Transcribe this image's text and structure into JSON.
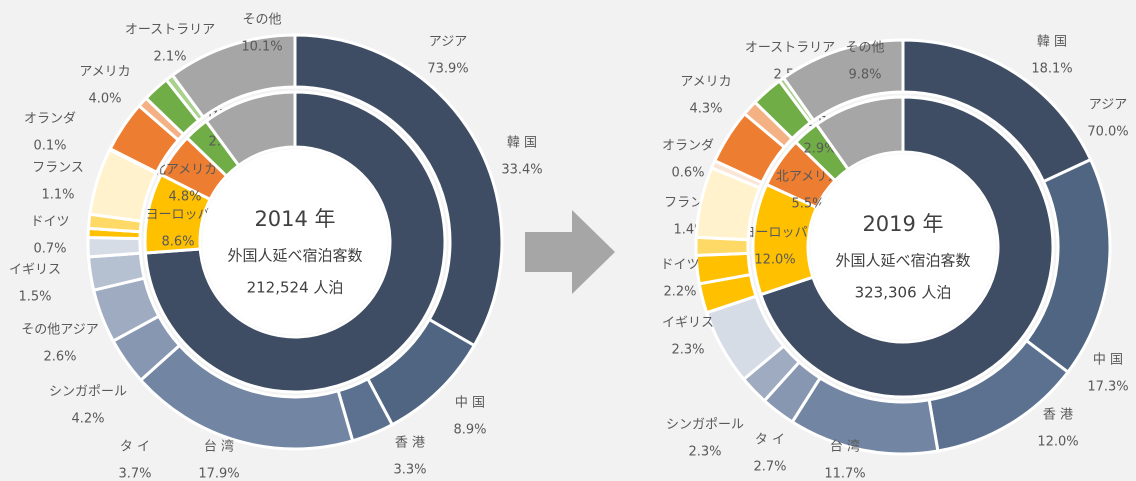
{
  "chart_data": [
    {
      "type": "donut",
      "center_text": [
        "2014 年",
        "外国人延べ宿泊客数",
        "212,524 人泊"
      ],
      "inner": {
        "categories": [
          "アジア",
          "ヨーロッパ",
          "北アメリカ",
          "オセアニア",
          null
        ],
        "values": [
          73.9,
          8.6,
          4.8,
          2.7,
          10.1
        ],
        "value_labels": [
          "73.9%",
          "8.6%",
          "4.8%",
          "2.7%",
          null
        ],
        "colors": [
          "#3e4d63",
          "#ffc000",
          "#ed7d31",
          "#70ad47",
          "#a6a6a6"
        ]
      },
      "outer": {
        "categories": [
          "韓 国",
          "中 国",
          "香 港",
          "台 湾",
          "タ イ",
          "シンガポール",
          "その他アジア",
          "イギリス",
          "ドイツ",
          "フランス",
          null,
          "オランダ",
          "アメリカ",
          null,
          "オーストラリア",
          null,
          "その他"
        ],
        "values": [
          33.4,
          8.9,
          3.3,
          17.9,
          3.7,
          4.2,
          2.6,
          1.5,
          0.7,
          1.1,
          5.2,
          0.1,
          4.0,
          0.8,
          2.1,
          0.6,
          10.1
        ],
        "value_labels": [
          "33.4%",
          "8.9%",
          "3.3%",
          "17.9%",
          "3.7%",
          "4.2%",
          "2.6%",
          "1.5%",
          "0.7%",
          "1.1%",
          null,
          "0.1%",
          "4.0%",
          null,
          "2.1%",
          null,
          "10.1%"
        ],
        "colors": [
          "#3e4d63",
          "#4f6582",
          "#5c7190",
          "#7285a3",
          "#8797b2",
          "#9eabc1",
          "#b5c0d1",
          "#d6dce5",
          "#ffc000",
          "#ffd966",
          "#fff2cc",
          "#fbe5d6",
          "#ed7d31",
          "#f4b183",
          "#70ad47",
          "#a9d18e",
          "#a6a6a6"
        ]
      }
    },
    {
      "type": "donut",
      "center_text": [
        "2019 年",
        "外国人延べ宿泊客数",
        "323,306 人泊"
      ],
      "inner": {
        "categories": [
          "アジア",
          "ヨーロッパ",
          "北アメリカ",
          "オセアニア",
          null
        ],
        "values": [
          70.0,
          12.0,
          5.5,
          2.9,
          9.8
        ],
        "value_labels": [
          "70.0%",
          "12.0%",
          "5.5%",
          "2.9%",
          null
        ],
        "colors": [
          "#3e4d63",
          "#ffc000",
          "#ed7d31",
          "#70ad47",
          "#a6a6a6"
        ]
      },
      "outer": {
        "categories": [
          "韓 国",
          "中 国",
          "香 港",
          "台 湾",
          "タ イ",
          "シンガポール",
          null,
          "イギリス",
          "ドイツ",
          "フランス",
          null,
          "オランダ",
          "アメリカ",
          null,
          "オーストラリア",
          null,
          "その他"
        ],
        "values": [
          18.1,
          17.3,
          12.0,
          11.7,
          2.7,
          2.3,
          5.9,
          2.3,
          2.2,
          1.4,
          5.5,
          0.6,
          4.3,
          1.2,
          2.5,
          0.4,
          9.8
        ],
        "value_labels": [
          "18.1%",
          "17.3%",
          "12.0%",
          "11.7%",
          "2.7%",
          "2.3%",
          null,
          "2.3%",
          "2.2%",
          "1.4%",
          null,
          "0.6%",
          "4.3%",
          null,
          "2.5%",
          null,
          "9.8%"
        ],
        "colors": [
          "#3e4d63",
          "#4f6582",
          "#5c7190",
          "#7285a3",
          "#8797b2",
          "#9eabc1",
          "#d6dce5",
          "#ffc000",
          "#ffc000",
          "#ffd966",
          "#fff2cc",
          "#fbe5d6",
          "#ed7d31",
          "#f4b183",
          "#70ad47",
          "#a9d18e",
          "#a6a6a6"
        ]
      }
    }
  ]
}
